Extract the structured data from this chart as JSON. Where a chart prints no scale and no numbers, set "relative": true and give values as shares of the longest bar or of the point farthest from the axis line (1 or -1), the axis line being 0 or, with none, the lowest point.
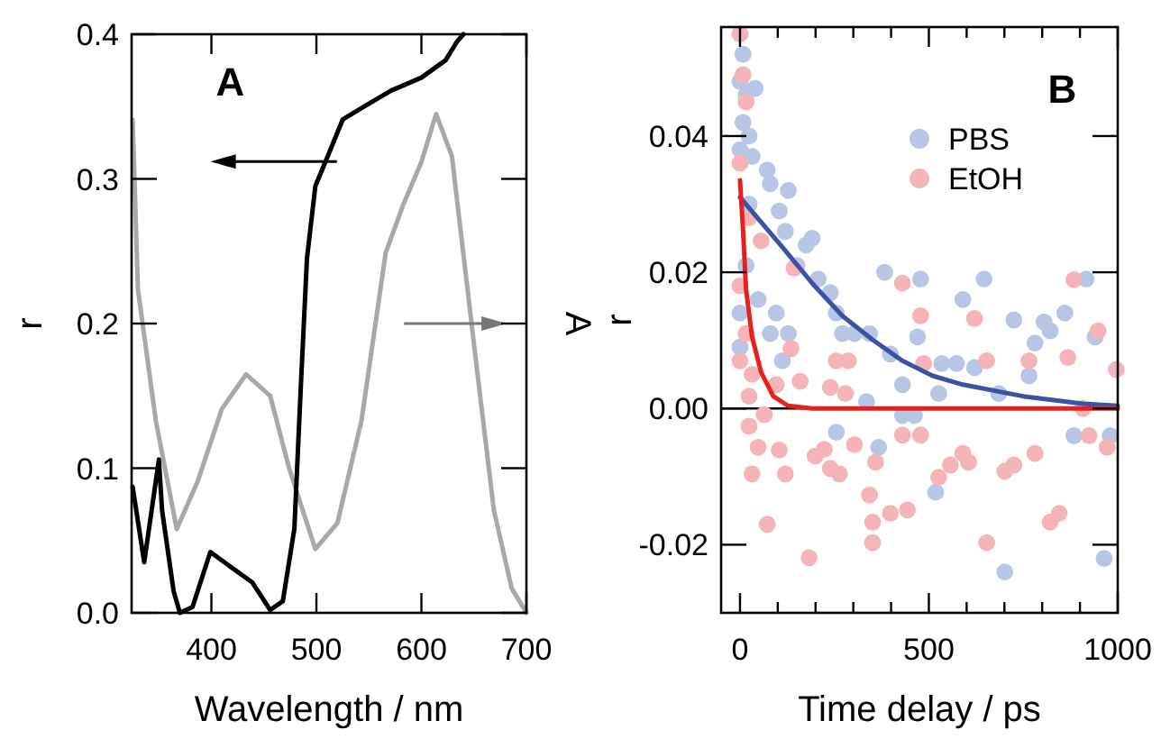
{
  "chart_data": [
    {
      "type": "line",
      "xlabel": "Wavelength / nm",
      "ylabel": "r",
      "annotations": [
        "A"
      ],
      "xlim": [
        324,
        700
      ],
      "xticks": [
        400,
        500,
        600,
        700
      ],
      "ylim": [
        0,
        0.4
      ],
      "yticks": [
        {
          "value": 0,
          "label": "0.0"
        },
        0.1,
        0.2,
        0.3,
        0.4
      ],
      "grid": false,
      "legend": false,
      "marker": "none",
      "line_style": "solid",
      "series": [
        {
          "color": "#000000",
          "x": [
            325,
            336,
            350,
            353,
            364,
            370,
            382,
            399,
            416,
            439,
            456,
            468,
            479,
            485,
            491,
            499,
            511,
            525,
            543,
            571,
            600,
            623,
            634,
            640
          ],
          "values": [
            0.087,
            0.035,
            0.106,
            0.071,
            0.015,
            0.0,
            0.004,
            0.042,
            0.033,
            0.021,
            0.002,
            0.008,
            0.058,
            0.154,
            0.245,
            0.295,
            0.316,
            0.341,
            0.349,
            0.361,
            0.37,
            0.382,
            0.395,
            0.4
          ]
        }
      ]
    },
    {
      "type": "line",
      "relative": true,
      "y2label": "A",
      "xlim": [
        324,
        700
      ],
      "marker": "none",
      "line_style": "solid",
      "series": [
        {
          "color": "#a8a8a8",
          "x": [
            325,
            330,
            347,
            367,
            387,
            410,
            433,
            456,
            474,
            499,
            520,
            543,
            566,
            583,
            600,
            614,
            629,
            652,
            669,
            686,
            700
          ],
          "values": [
            0.988,
            0.649,
            0.386,
            0.168,
            0.264,
            0.409,
            0.478,
            0.435,
            0.29,
            0.128,
            0.18,
            0.386,
            0.722,
            0.82,
            0.904,
            1,
            0.916,
            0.504,
            0.206,
            0.049,
            0
          ]
        }
      ]
    },
    {
      "type": "scatter",
      "xlabel": "Time delay / ps",
      "ylabel": "r",
      "annotations": [
        "B"
      ],
      "xlim": [
        -50,
        1000
      ],
      "xticks": [
        0,
        {
          "value": 100,
          "label": null
        },
        {
          "value": 200,
          "label": null
        },
        {
          "value": 300,
          "label": null
        },
        {
          "value": 400,
          "label": null
        },
        500,
        {
          "value": 600,
          "label": null
        },
        {
          "value": 700,
          "label": null
        },
        {
          "value": 800,
          "label": null
        },
        {
          "value": 900,
          "label": null
        },
        1000
      ],
      "ylim": [
        -0.03,
        0.056
      ],
      "yticks": [
        {
          "value": -0.02,
          "label": "-0.02"
        },
        {
          "value": 0,
          "label": "0.00"
        },
        0.02,
        {
          "value": 0.04,
          "label": "0.04"
        }
      ],
      "grid": false,
      "legend": "top right",
      "ref_lines": [
        {
          "axis": "y",
          "value": 0,
          "color": "#000000"
        }
      ],
      "series": [
        {
          "name": "PBS",
          "color": "#b8c6e6",
          "marker": "circle",
          "x": [
            8,
            0,
            16,
            40,
            8,
            24,
            0,
            32,
            72,
            80,
            128,
            24,
            104,
            120,
            175,
            191,
            151,
            16,
            0,
            48,
            96,
            80,
            112,
            0,
            128,
            207,
            239,
            255,
            271,
            303,
            343,
            383,
            398,
            430,
            478,
            470,
            534,
            573,
            590,
            621,
            646,
            725,
            765,
            781,
            805,
            821,
            860,
            916,
            940,
            884,
            980,
            964,
            701,
            518,
            367,
            255,
            430,
            462,
            526,
            685,
            335
          ],
          "values": [
            0.052,
            0.048,
            0.046,
            0.047,
            0.042,
            0.04,
            0.038,
            0.037,
            0.035,
            0.033,
            0.032,
            0.03,
            0.029,
            0.026,
            0.024,
            0.025,
            0.021,
            0.021,
            0.014,
            0.016,
            0.014,
            0.011,
            0.007,
            0.009,
            0.011,
            0.019,
            0.017,
            0.014,
            0.011,
            0.011,
            0.011,
            0.02,
            0.008,
            0.0035,
            0.019,
            0.0105,
            0.0066,
            0.0066,
            0.016,
            0.006,
            0.019,
            0.013,
            0.0048,
            0.0096,
            0.0127,
            0.0114,
            0.014,
            0.019,
            0.0105,
            -0.004,
            -0.004,
            -0.022,
            -0.024,
            -0.0123,
            -0.0057,
            -0.0035,
            -0.001,
            -0.001,
            0.0022,
            0.0022,
            0.001
          ]
        },
        {
          "name": "EtOH",
          "color": "#f5b5b8",
          "marker": "circle",
          "x": [
            0,
            8,
            16,
            0,
            24,
            56,
            0,
            16,
            0,
            32,
            24,
            24,
            64,
            48,
            32,
            72,
            104,
            120,
            96,
            143,
            159,
            135,
            183,
            199,
            223,
            239,
            263,
            239,
            279,
            303,
            343,
            359,
            351,
            351,
            398,
            443,
            430,
            478,
            430,
            478,
            486,
            526,
            557,
            590,
            605,
            621,
            653,
            653,
            701,
            725,
            781,
            765,
            821,
            845,
            868,
            884,
            908,
            948,
            924,
            972,
            996,
            287,
            255
          ],
          "values": [
            0.055,
            0.049,
            0.045,
            0.036,
            0.028,
            0.0246,
            0.018,
            0.011,
            0.007,
            0.005,
            0.0018,
            -0.0026,
            -0.0009,
            -0.0057,
            -0.0096,
            -0.017,
            -0.0061,
            -0.0096,
            0.0035,
            0.0206,
            0.004,
            0.0088,
            -0.0219,
            -0.007,
            -0.006,
            -0.0088,
            -0.0096,
            0.0031,
            0.0022,
            -0.0053,
            -0.0127,
            -0.0079,
            -0.0167,
            -0.0197,
            -0.0154,
            -0.0149,
            0.0184,
            0.0136,
            -0.0039,
            -0.0039,
            0.0066,
            -0.0101,
            -0.0083,
            -0.0066,
            -0.0079,
            0.0132,
            0.007,
            -0.0197,
            -0.0092,
            -0.0083,
            -0.0066,
            0.007,
            -0.0167,
            -0.0154,
            0.0075,
            0.0189,
            0,
            0.0114,
            -0.004,
            -0.0057,
            0.0057,
            0.007,
            0.007
          ]
        },
        {
          "type": "line",
          "color": "#3a53a4",
          "marker": "none",
          "x": [
            0,
            112,
            191,
            271,
            351,
            430,
            510,
            590,
            749,
            908,
            1000
          ],
          "values": [
            0.031,
            0.0237,
            0.0184,
            0.0136,
            0.0101,
            0.007,
            0.0048,
            0.0035,
            0.0018,
            0.0007,
            0.0004
          ]
        },
        {
          "type": "line",
          "color": "#e8201d",
          "marker": "none",
          "x": [
            0,
            8,
            16,
            32,
            56,
            88,
            127,
            191,
            1000
          ],
          "values": [
            0.0335,
            0.0263,
            0.0175,
            0.0105,
            0.0053,
            0.0018,
            0.0004,
            0,
            0
          ]
        }
      ]
    }
  ]
}
